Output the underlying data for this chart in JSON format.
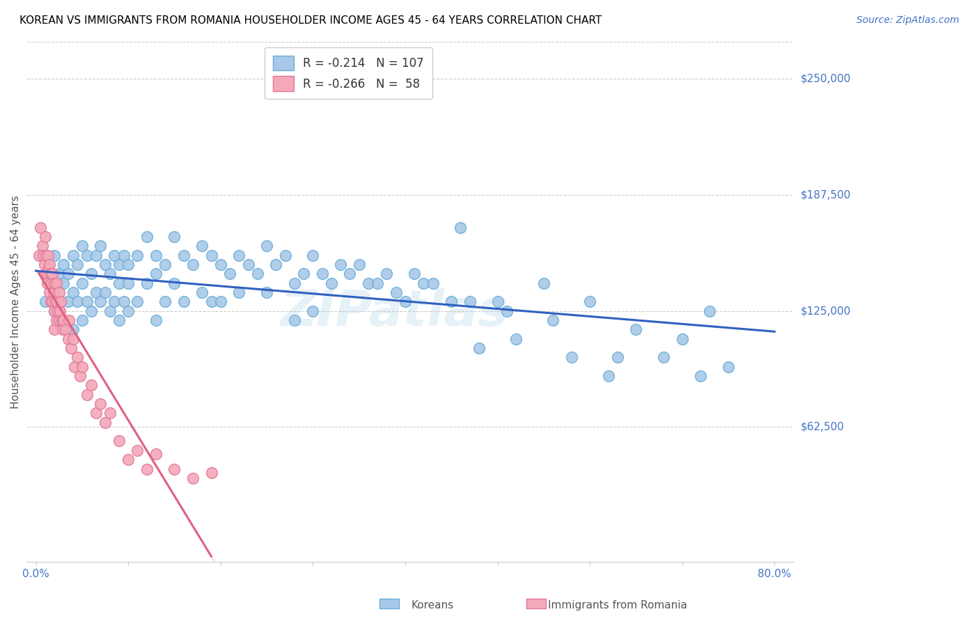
{
  "title": "KOREAN VS IMMIGRANTS FROM ROMANIA HOUSEHOLDER INCOME AGES 45 - 64 YEARS CORRELATION CHART",
  "source": "Source: ZipAtlas.com",
  "ylabel": "Householder Income Ages 45 - 64 years",
  "xlim": [
    -0.01,
    0.82
  ],
  "ylim": [
    -10000,
    270000
  ],
  "yticks": [
    62500,
    125000,
    187500,
    250000
  ],
  "ytick_labels": [
    "$62,500",
    "$125,000",
    "$187,500",
    "$250,000"
  ],
  "korean_color": "#a8c8e8",
  "korean_edge": "#6aaed6",
  "romania_color": "#f4a8b8",
  "romania_edge": "#e07898",
  "line_blue": "#3060c0",
  "line_pink": "#e06080",
  "line_pink_dash": "#f0b8c8",
  "watermark": "ZIPatlas",
  "legend_blue_r": "-0.214",
  "legend_blue_n": "107",
  "legend_pink_r": "-0.266",
  "legend_pink_n": "58",
  "korean_x": [
    0.01,
    0.015,
    0.02,
    0.02,
    0.025,
    0.025,
    0.03,
    0.03,
    0.03,
    0.035,
    0.035,
    0.04,
    0.04,
    0.04,
    0.045,
    0.045,
    0.05,
    0.05,
    0.05,
    0.055,
    0.055,
    0.06,
    0.06,
    0.065,
    0.065,
    0.07,
    0.07,
    0.075,
    0.075,
    0.08,
    0.08,
    0.085,
    0.085,
    0.09,
    0.09,
    0.09,
    0.095,
    0.095,
    0.1,
    0.1,
    0.1,
    0.11,
    0.11,
    0.12,
    0.12,
    0.13,
    0.13,
    0.13,
    0.14,
    0.14,
    0.15,
    0.15,
    0.16,
    0.16,
    0.17,
    0.18,
    0.18,
    0.19,
    0.19,
    0.2,
    0.2,
    0.21,
    0.22,
    0.22,
    0.23,
    0.24,
    0.25,
    0.25,
    0.26,
    0.27,
    0.28,
    0.28,
    0.29,
    0.3,
    0.3,
    0.31,
    0.32,
    0.33,
    0.34,
    0.35,
    0.36,
    0.37,
    0.38,
    0.39,
    0.4,
    0.41,
    0.42,
    0.43,
    0.45,
    0.46,
    0.47,
    0.48,
    0.5,
    0.51,
    0.52,
    0.55,
    0.56,
    0.58,
    0.6,
    0.62,
    0.63,
    0.65,
    0.68,
    0.7,
    0.72,
    0.73,
    0.75
  ],
  "korean_y": [
    130000,
    140000,
    155000,
    125000,
    145000,
    125000,
    150000,
    140000,
    120000,
    145000,
    130000,
    155000,
    135000,
    115000,
    150000,
    130000,
    160000,
    140000,
    120000,
    155000,
    130000,
    145000,
    125000,
    155000,
    135000,
    160000,
    130000,
    150000,
    135000,
    145000,
    125000,
    155000,
    130000,
    150000,
    140000,
    120000,
    155000,
    130000,
    150000,
    140000,
    125000,
    155000,
    130000,
    165000,
    140000,
    155000,
    145000,
    120000,
    150000,
    130000,
    165000,
    140000,
    155000,
    130000,
    150000,
    160000,
    135000,
    155000,
    130000,
    150000,
    130000,
    145000,
    155000,
    135000,
    150000,
    145000,
    160000,
    135000,
    150000,
    155000,
    140000,
    120000,
    145000,
    155000,
    125000,
    145000,
    140000,
    150000,
    145000,
    150000,
    140000,
    140000,
    145000,
    135000,
    130000,
    145000,
    140000,
    140000,
    130000,
    170000,
    130000,
    105000,
    130000,
    125000,
    110000,
    140000,
    120000,
    100000,
    130000,
    90000,
    100000,
    115000,
    100000,
    110000,
    90000,
    125000,
    95000
  ],
  "romania_x": [
    0.003,
    0.005,
    0.007,
    0.008,
    0.009,
    0.01,
    0.01,
    0.011,
    0.012,
    0.012,
    0.013,
    0.014,
    0.015,
    0.015,
    0.016,
    0.016,
    0.017,
    0.018,
    0.018,
    0.019,
    0.02,
    0.02,
    0.02,
    0.021,
    0.022,
    0.022,
    0.023,
    0.024,
    0.025,
    0.025,
    0.026,
    0.027,
    0.028,
    0.029,
    0.03,
    0.032,
    0.035,
    0.036,
    0.038,
    0.04,
    0.042,
    0.045,
    0.048,
    0.05,
    0.055,
    0.06,
    0.065,
    0.07,
    0.075,
    0.08,
    0.09,
    0.1,
    0.11,
    0.12,
    0.13,
    0.15,
    0.17,
    0.19
  ],
  "romania_y": [
    155000,
    170000,
    160000,
    155000,
    150000,
    165000,
    145000,
    155000,
    145000,
    140000,
    155000,
    148000,
    150000,
    135000,
    145000,
    130000,
    140000,
    145000,
    130000,
    135000,
    140000,
    125000,
    115000,
    130000,
    140000,
    120000,
    130000,
    125000,
    135000,
    120000,
    125000,
    130000,
    120000,
    115000,
    120000,
    115000,
    110000,
    120000,
    105000,
    110000,
    95000,
    100000,
    90000,
    95000,
    80000,
    85000,
    70000,
    75000,
    65000,
    70000,
    55000,
    45000,
    50000,
    40000,
    48000,
    40000,
    35000,
    38000
  ]
}
